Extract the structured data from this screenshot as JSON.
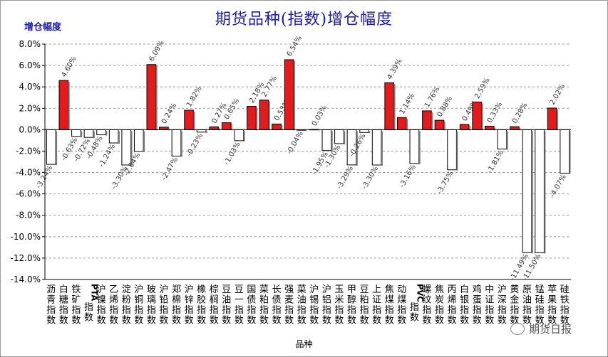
{
  "title": "期货品种(指数)增仓幅度",
  "chart_data": {
    "type": "bar",
    "title": "期货品种(指数)增仓幅度",
    "ylabel": "增仓幅度",
    "xlabel": "品种",
    "ylim": [
      -14,
      8
    ],
    "ytick_step": 2,
    "yticks": [
      "8.0%",
      "6.0%",
      "4.0%",
      "2.0%",
      "0.0%",
      "-2.0%",
      "-4.0%",
      "-6.0%",
      "-8.0%",
      "-10.0%",
      "-12.0%",
      "-14.0%"
    ],
    "grid": "horizontal dashed",
    "colors": {
      "positive": "#e41a1c",
      "negative": "#ffffff",
      "outline": "#000000",
      "label": "#1a1aa6"
    },
    "categories": [
      "沥青指数",
      "白糖指数",
      "铁矿指数",
      "PTA指数",
      "沪镍指数",
      "乙烯指数",
      "淀粉指数",
      "沪铜指数",
      "玻璃指数",
      "沪铅指数",
      "郑棉指数",
      "沪锌指数",
      "橡胶指数",
      "棕榈指数",
      "豆油指数",
      "豆一指数",
      "国债指数",
      "菜粕指数",
      "长债指数",
      "强麦指数",
      "菜油指数",
      "沪锡指数",
      "沪铝指数",
      "玉米指数",
      "甲醇指数",
      "豆粕指数",
      "上证指数",
      "焦煤指数",
      "动煤指数",
      "PVC指数",
      "螺纹指数",
      "焦炭指数",
      "丙烯指数",
      "白银指数",
      "鸡蛋指数",
      "中证指数",
      "沪深指数",
      "黄金指数",
      "原油指数",
      "锰硅指数",
      "苹果指数",
      "硅铁指数"
    ],
    "values": [
      -3.24,
      4.6,
      -0.63,
      -0.72,
      -0.48,
      -1.24,
      -3.3,
      -2.04,
      6.09,
      0.24,
      -2.47,
      1.82,
      -0.23,
      0.27,
      0.65,
      -1.03,
      2.18,
      2.77,
      0.53,
      6.54,
      -0.04,
      0.03,
      -1.95,
      -1.3,
      -3.29,
      -0.26,
      -3.3,
      4.39,
      1.14,
      -3.16,
      1.76,
      0.88,
      -3.75,
      0.49,
      2.59,
      0.33,
      -1.81,
      0.28,
      -11.49,
      -11.5,
      2.02,
      -4.07
    ],
    "labels": [
      "-3.24%",
      "4.60%",
      "-0.63%",
      "-0.72%",
      "-0.48%",
      "-1.24%",
      "-3.30%",
      "-2.04%",
      "6.09%",
      "0.24%",
      "-2.47%",
      "1.82%",
      "-0.23%",
      "0.27%",
      "0.65%",
      "-1.03%",
      "2.18%",
      "2.77%",
      "0.53%",
      "6.54%",
      "-0.04%",
      "0.03%",
      "-1.95%",
      "-1.30%",
      "-3.29%",
      "-0.26%",
      "-3.30%",
      "4.39%",
      "1.14%",
      "-3.16%",
      "1.76%",
      "0.88%",
      "-3.75%",
      "0.49%",
      "2.59%",
      "0.33%",
      "-1.81%",
      "0.28%",
      "-11.49%",
      "-11.50%",
      "2.02%",
      "-4.07%"
    ]
  },
  "watermark": "期货日报"
}
